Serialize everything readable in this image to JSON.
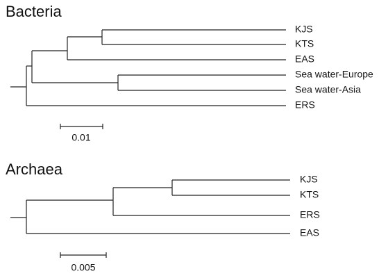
{
  "trees": [
    {
      "title": "Bacteria",
      "leaves": [
        "KJS",
        "KTS",
        "EAS",
        "Sea water-Europe",
        "Sea water-Asia",
        "ERS"
      ],
      "scale_label": "0.01"
    },
    {
      "title": "Archaea",
      "leaves": [
        "KJS",
        "KTS",
        "ERS",
        "EAS"
      ],
      "scale_label": "0.005"
    }
  ]
}
